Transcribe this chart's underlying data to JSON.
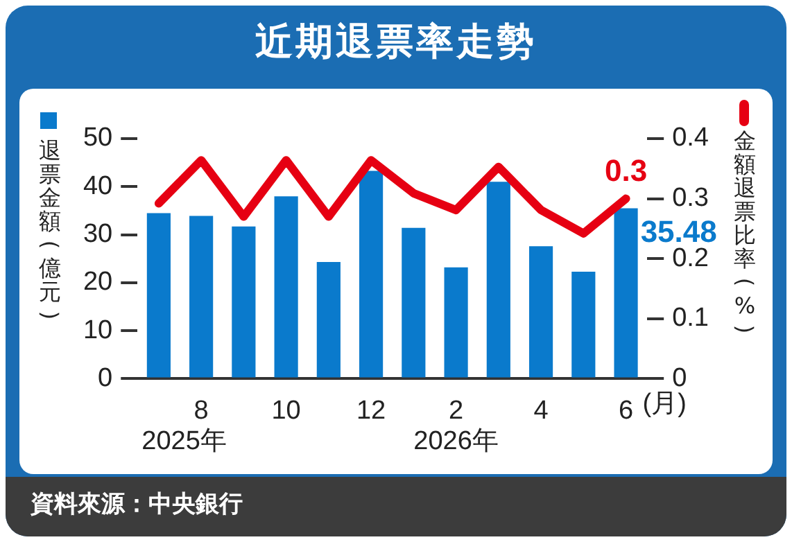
{
  "chart_data": {
    "type": "bar",
    "title": "近期退票率走勢",
    "ylabel": "退票金額(億元)",
    "y2label": "金額退票比率(%)",
    "xlabel": "(月)",
    "categories": [
      null,
      "8",
      null,
      "10",
      null,
      "12",
      null,
      "2",
      null,
      "4",
      null,
      "6"
    ],
    "series": [
      {
        "color": "#0a7acc",
        "values": [
          34.5,
          33.9,
          31.7,
          38.0,
          24.3,
          43.3,
          31.4,
          23.2,
          41.0,
          27.6,
          22.3,
          35.48
        ],
        "value_labels": [
          null,
          null,
          null,
          null,
          null,
          null,
          null,
          null,
          null,
          null,
          null,
          "35.48"
        ]
      },
      {
        "type": "line",
        "axis": "y2",
        "color": "#e60012",
        "values": [
          0.292,
          0.364,
          0.27,
          0.364,
          0.27,
          0.364,
          0.309,
          0.281,
          0.353,
          0.281,
          0.242,
          0.3
        ],
        "value_labels": [
          null,
          null,
          null,
          null,
          null,
          null,
          null,
          null,
          null,
          null,
          null,
          "0.3"
        ]
      }
    ],
    "ylim": [
      0,
      50
    ],
    "yticks": [
      0,
      10,
      20,
      30,
      40,
      50
    ],
    "y2lim": [
      0,
      0.4
    ],
    "y2ticks": [
      0,
      0.1,
      0.2,
      0.3,
      0.4
    ],
    "annotations": [
      "2025年",
      "2026年",
      "資料來源：中央銀行"
    ],
    "grid": false,
    "legend": false,
    "marker": "none",
    "line_style": "solid"
  }
}
